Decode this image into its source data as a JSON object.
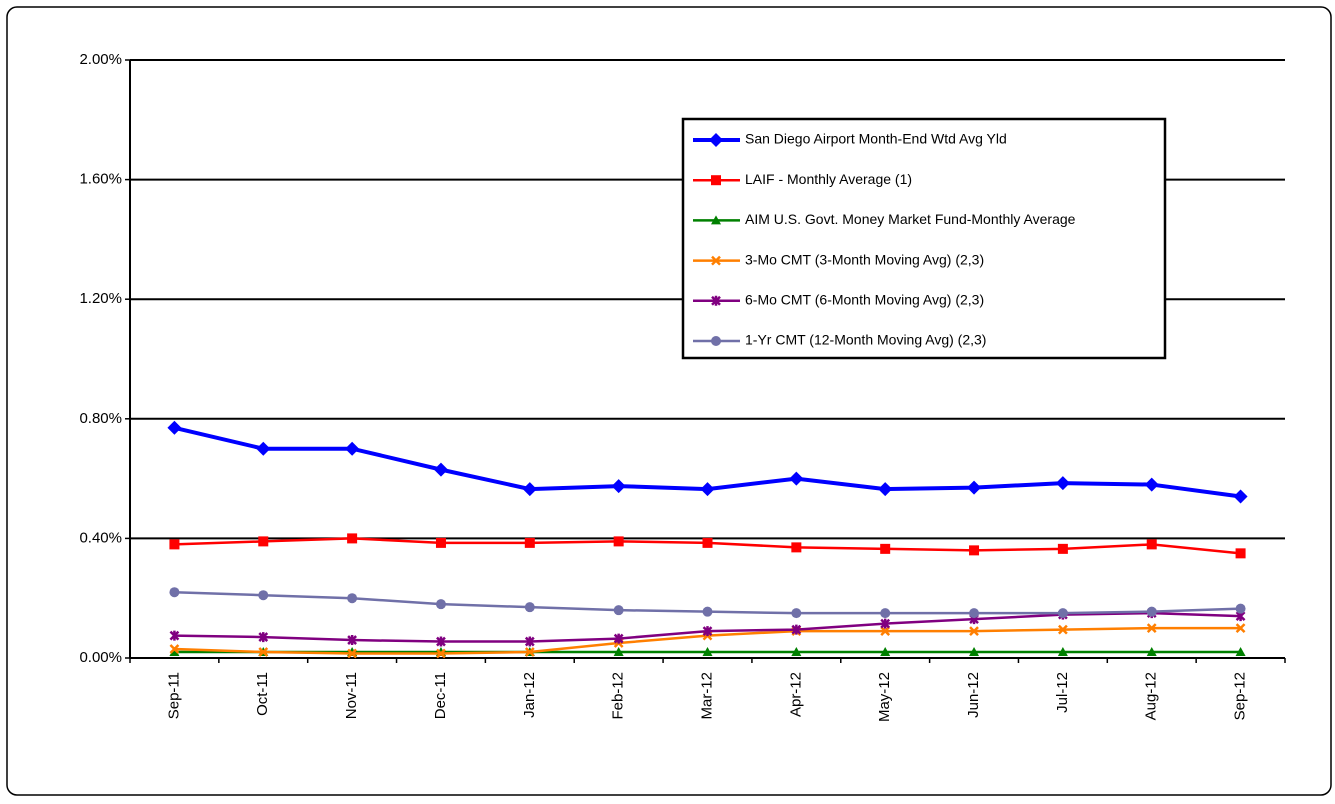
{
  "chart_data": {
    "type": "line",
    "categories": [
      "Sep-11",
      "Oct-11",
      "Nov-11",
      "Dec-11",
      "Jan-12",
      "Feb-12",
      "Mar-12",
      "Apr-12",
      "May-12",
      "Jun-12",
      "Jul-12",
      "Aug-12",
      "Sep-12"
    ],
    "ylim": [
      0,
      2
    ],
    "yticks": [
      {
        "value": 0,
        "label": "0.00%"
      },
      {
        "value": 0.4,
        "label": "0.40%"
      },
      {
        "value": 0.8,
        "label": "0.80%"
      },
      {
        "value": 1.2,
        "label": "1.20%"
      },
      {
        "value": 1.6,
        "label": "1.60%"
      },
      {
        "value": 2,
        "label": "2.00%"
      }
    ],
    "grid": true,
    "series": [
      {
        "name": "San Diego Airport Month-End Wtd Avg Yld",
        "color": "#0000ff",
        "marker": "diamond",
        "values": [
          0.77,
          0.7,
          0.7,
          0.63,
          0.565,
          0.575,
          0.565,
          0.6,
          0.565,
          0.57,
          0.585,
          0.58,
          0.54
        ]
      },
      {
        "name": "LAIF - Monthly Average (1)",
        "color": "#ff0000",
        "marker": "square",
        "values": [
          0.38,
          0.39,
          0.4,
          0.385,
          0.385,
          0.39,
          0.385,
          0.37,
          0.365,
          0.36,
          0.365,
          0.38,
          0.35
        ]
      },
      {
        "name": "AIM U.S. Govt. Money Market Fund-Monthly Average",
        "color": "#008000",
        "marker": "triangle",
        "values": [
          0.02,
          0.02,
          0.02,
          0.02,
          0.02,
          0.02,
          0.02,
          0.02,
          0.02,
          0.02,
          0.02,
          0.02,
          0.02
        ]
      },
      {
        "name": "3-Mo CMT (3-Month Moving Avg) (2,3)",
        "color": "#ff7f00",
        "marker": "x",
        "values": [
          0.03,
          0.02,
          0.015,
          0.015,
          0.02,
          0.05,
          0.075,
          0.09,
          0.09,
          0.09,
          0.095,
          0.1,
          0.1
        ]
      },
      {
        "name": "6-Mo CMT (6-Month Moving Avg) (2,3)",
        "color": "#800080",
        "marker": "star",
        "values": [
          0.075,
          0.07,
          0.06,
          0.055,
          0.055,
          0.065,
          0.09,
          0.095,
          0.115,
          0.13,
          0.145,
          0.15,
          0.14
        ]
      },
      {
        "name": "1-Yr CMT (12-Month Moving Avg) (2,3)",
        "color": "#7070a8",
        "marker": "circle",
        "values": [
          0.22,
          0.21,
          0.2,
          0.18,
          0.17,
          0.16,
          0.155,
          0.15,
          0.15,
          0.15,
          0.15,
          0.155,
          0.165
        ]
      }
    ]
  }
}
